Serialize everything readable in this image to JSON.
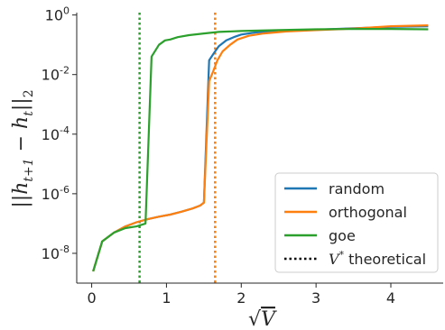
{
  "chart_data": {
    "type": "line",
    "xlabel": "√V",
    "ylabel": "||h_{t+1} − h_t||_2",
    "xlim": [
      -0.2,
      4.7
    ],
    "ylim": [
      1e-09,
      1.2
    ],
    "yscale": "log",
    "grid": false,
    "legend_placement": "lower-right",
    "x_ticks": [
      {
        "value": 0,
        "label": "0"
      },
      {
        "value": 1,
        "label": "1"
      },
      {
        "value": 2,
        "label": "2"
      },
      {
        "value": 3,
        "label": "3"
      },
      {
        "value": 4,
        "label": "4"
      }
    ],
    "y_ticks": [
      {
        "value": 1,
        "mantissa": "10",
        "exponent": "0"
      },
      {
        "value": 0.01,
        "mantissa": "10",
        "exponent": "-2"
      },
      {
        "value": 0.0001,
        "mantissa": "10",
        "exponent": "-4"
      },
      {
        "value": 1e-06,
        "mantissa": "10",
        "exponent": "-6"
      },
      {
        "value": 1e-08,
        "mantissa": "10",
        "exponent": "-8"
      }
    ],
    "series": [
      {
        "name": "random",
        "color": "#1f77b4",
        "points": [
          [
            0.02,
            2.5e-09
          ],
          [
            0.14,
            2.5e-08
          ],
          [
            0.3,
            5e-08
          ],
          [
            0.45,
            8e-08
          ],
          [
            0.6,
            1.1e-07
          ],
          [
            0.75,
            1.4e-07
          ],
          [
            0.9,
            1.7e-07
          ],
          [
            1.05,
            2e-07
          ],
          [
            1.2,
            2.5e-07
          ],
          [
            1.35,
            3.2e-07
          ],
          [
            1.45,
            4e-07
          ],
          [
            1.5,
            5e-07
          ],
          [
            1.57,
            0.03
          ],
          [
            1.65,
            0.06
          ],
          [
            1.7,
            0.09
          ],
          [
            1.8,
            0.14
          ],
          [
            1.9,
            0.18
          ],
          [
            2.0,
            0.22
          ],
          [
            2.2,
            0.26
          ],
          [
            2.5,
            0.29
          ],
          [
            3.0,
            0.32
          ],
          [
            3.5,
            0.36
          ],
          [
            4.0,
            0.4
          ],
          [
            4.5,
            0.42
          ]
        ]
      },
      {
        "name": "orthogonal",
        "color": "#ff7f0e",
        "points": [
          [
            0.02,
            2.5e-09
          ],
          [
            0.14,
            2.5e-08
          ],
          [
            0.3,
            5e-08
          ],
          [
            0.45,
            8e-08
          ],
          [
            0.6,
            1.1e-07
          ],
          [
            0.75,
            1.4e-07
          ],
          [
            0.9,
            1.7e-07
          ],
          [
            1.05,
            2e-07
          ],
          [
            1.2,
            2.5e-07
          ],
          [
            1.35,
            3.2e-07
          ],
          [
            1.45,
            4e-07
          ],
          [
            1.5,
            5e-07
          ],
          [
            1.57,
            0.006
          ],
          [
            1.62,
            0.012
          ],
          [
            1.68,
            0.03
          ],
          [
            1.75,
            0.06
          ],
          [
            1.85,
            0.1
          ],
          [
            1.95,
            0.15
          ],
          [
            2.1,
            0.2
          ],
          [
            2.3,
            0.24
          ],
          [
            2.6,
            0.28
          ],
          [
            3.0,
            0.31
          ],
          [
            3.5,
            0.35
          ],
          [
            4.0,
            0.42
          ],
          [
            4.5,
            0.45
          ]
        ]
      },
      {
        "name": "goe",
        "color": "#2ca02c",
        "points": [
          [
            0.02,
            2.5e-09
          ],
          [
            0.14,
            2.5e-08
          ],
          [
            0.3,
            5e-08
          ],
          [
            0.45,
            7e-08
          ],
          [
            0.6,
            8e-08
          ],
          [
            0.72,
            1e-07
          ],
          [
            0.8,
            0.04
          ],
          [
            0.9,
            0.1
          ],
          [
            0.98,
            0.14
          ],
          [
            1.05,
            0.15
          ],
          [
            1.15,
            0.18
          ],
          [
            1.3,
            0.21
          ],
          [
            1.5,
            0.24
          ],
          [
            1.7,
            0.27
          ],
          [
            2.0,
            0.29
          ],
          [
            2.5,
            0.31
          ],
          [
            3.0,
            0.33
          ],
          [
            3.5,
            0.34
          ],
          [
            4.0,
            0.34
          ],
          [
            4.5,
            0.33
          ]
        ]
      }
    ],
    "reference_lines": [
      {
        "name": "goe",
        "x": 0.64,
        "color": "#2ca02c",
        "style": "dotted"
      },
      {
        "name": "orthogonal",
        "x": 1.65,
        "color": "#ff7f0e",
        "style": "dotted"
      }
    ],
    "legend": [
      {
        "label": "random",
        "color": "#1f77b4",
        "style": "solid"
      },
      {
        "label": "orthogonal",
        "color": "#ff7f0e",
        "style": "solid"
      },
      {
        "label": "goe",
        "color": "#2ca02c",
        "style": "solid"
      },
      {
        "label": "V* theoretical",
        "color": "#000000",
        "style": "dotted"
      }
    ]
  }
}
